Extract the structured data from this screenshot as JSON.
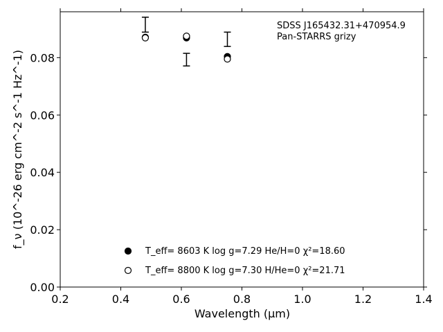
{
  "chart_data": {
    "type": "scatter",
    "title": "",
    "xlabel": "Wavelength (μm)",
    "ylabel": "f_ν (10^-26 erg cm^-2 s^-1 Hz^-1)",
    "xlim": [
      0.2,
      1.4
    ],
    "ylim": [
      0.0,
      0.096
    ],
    "x_ticks": [
      "0.2",
      "0.4",
      "0.6",
      "0.8",
      "1.0",
      "1.2",
      "1.4"
    ],
    "y_ticks": [
      "0.00",
      "0.02",
      "0.04",
      "0.06",
      "0.08"
    ],
    "annotations": [
      "SDSS J165432.31+470954.9",
      "Pan-STARRS grizy"
    ],
    "observed": {
      "x": [
        0.481,
        0.617,
        0.752
      ],
      "y": [
        0.0915,
        0.0793,
        0.0864
      ],
      "yerr": [
        0.0026,
        0.0022,
        0.0025
      ]
    },
    "series": [
      {
        "name": "T_eff= 8603 K log g=7.29 He/H=0 χ²=18.60",
        "marker": "filled-circle",
        "x": [
          0.481,
          0.617,
          0.752
        ],
        "y": [
          0.0871,
          0.0869,
          0.0804
        ]
      },
      {
        "name": "T_eff= 8800 K log g=7.30 H/He=0 χ²=21.71",
        "marker": "open-circle",
        "x": [
          0.481,
          0.617,
          0.752
        ],
        "y": [
          0.0869,
          0.0875,
          0.0795
        ]
      }
    ],
    "legend_position": "bottom-center",
    "grid": false,
    "colors": {
      "marker": "#000000",
      "background": "#ffffff"
    }
  }
}
